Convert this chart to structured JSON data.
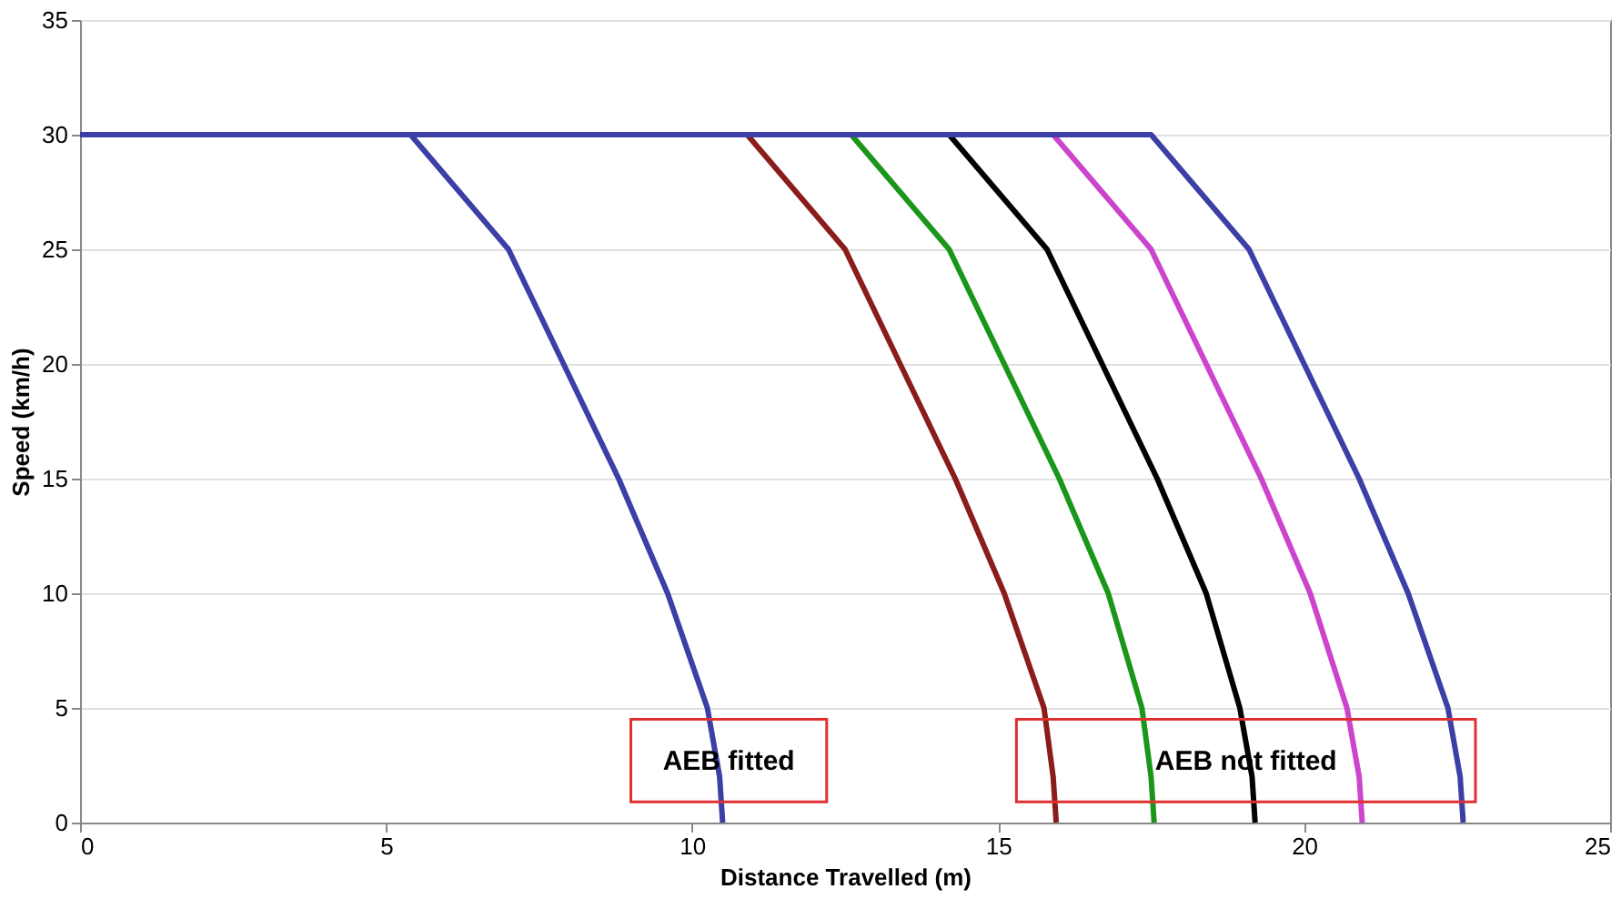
{
  "chart_data": {
    "type": "line",
    "xlabel": "Distance Travelled (m)",
    "ylabel": "Speed (km/h)",
    "xlim": [
      0,
      25
    ],
    "xticks": [
      0,
      5,
      10,
      15,
      20,
      25
    ],
    "ylim": [
      0,
      35
    ],
    "yticks": [
      0,
      5,
      10,
      15,
      20,
      25,
      30,
      35
    ],
    "grid": "y",
    "legend": false,
    "marker": "none",
    "line_style": "solid",
    "series": [
      {
        "color": "#3b3fa6",
        "x": [
          5.4,
          6.2,
          7.0,
          7.9,
          8.8,
          9.6,
          10.25,
          10.45,
          10.5
        ],
        "values": [
          30,
          27.5,
          25,
          20,
          15,
          10,
          5,
          2,
          0
        ]
      },
      {
        "color": "#8b1c1c",
        "x": [
          10.9,
          11.7,
          12.5,
          13.4,
          14.3,
          15.1,
          15.75,
          15.9,
          15.95
        ],
        "values": [
          30,
          27.5,
          25,
          20,
          15,
          10,
          5,
          2,
          0
        ]
      },
      {
        "color": "#1a961a",
        "x": [
          12.6,
          13.4,
          14.2,
          15.1,
          16.0,
          16.8,
          17.35,
          17.5,
          17.55
        ],
        "values": [
          30,
          27.5,
          25,
          20,
          15,
          10,
          5,
          2,
          0
        ]
      },
      {
        "color": "#000000",
        "x": [
          14.2,
          15.0,
          15.8,
          16.7,
          17.6,
          18.4,
          18.95,
          19.15,
          19.2
        ],
        "values": [
          30,
          27.5,
          25,
          20,
          15,
          10,
          5,
          2,
          0
        ]
      },
      {
        "color": "#cc44cc",
        "x": [
          15.9,
          16.7,
          17.5,
          18.4,
          19.3,
          20.1,
          20.7,
          20.9,
          20.95
        ],
        "values": [
          30,
          27.5,
          25,
          20,
          15,
          10,
          5,
          2,
          0
        ]
      },
      {
        "color": "#3b3fa6",
        "x": [
          0,
          17.5,
          18.3,
          19.1,
          20.0,
          20.9,
          21.7,
          22.35,
          22.55,
          22.6
        ],
        "values": [
          30,
          30,
          27.5,
          25,
          20,
          15,
          10,
          5,
          2,
          0
        ]
      }
    ],
    "annotations": [
      "AEB fitted",
      "AEB not fitted"
    ]
  }
}
